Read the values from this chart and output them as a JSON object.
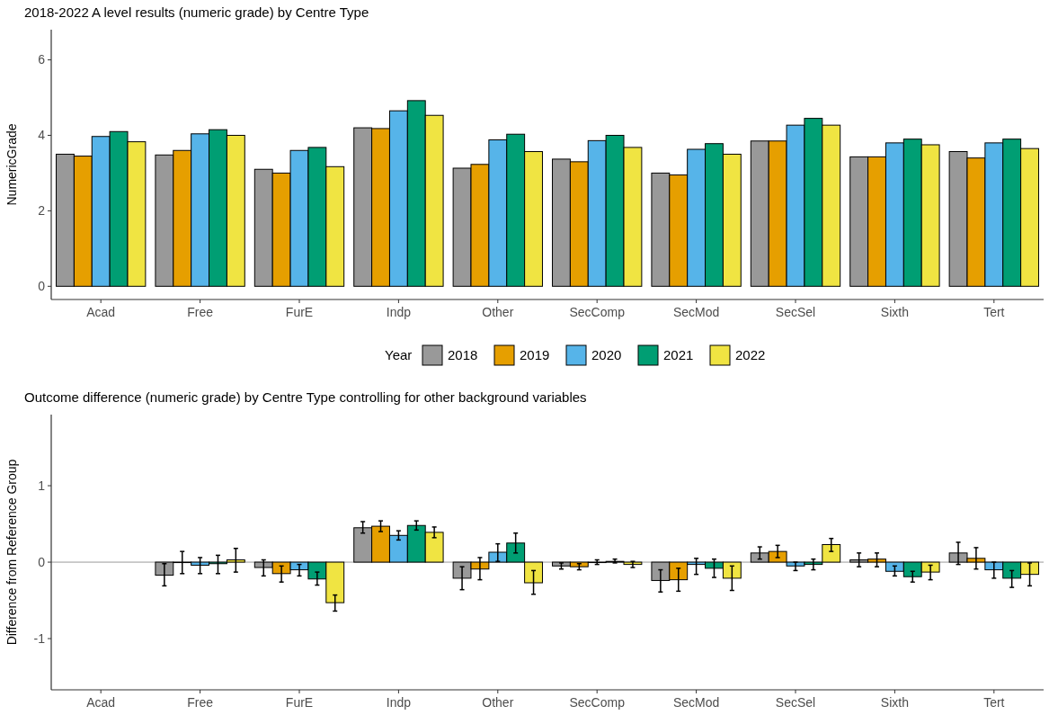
{
  "chart_data": [
    {
      "type": "bar",
      "title": "2018-2022 A level results (numeric grade) by Centre Type",
      "ylabel": "NumericGrade",
      "legend_title": "Year",
      "legend": "bottom",
      "categories": [
        "Acad",
        "Free",
        "FurE",
        "Indp",
        "Other",
        "SecComp",
        "SecMod",
        "SecSel",
        "Sixth",
        "Tert"
      ],
      "ylim": [
        -0.35,
        6.8
      ],
      "yticks": [
        0,
        2,
        4,
        6
      ],
      "series": [
        {
          "name": "2018",
          "color": "#999999",
          "values": [
            3.5,
            3.48,
            3.1,
            4.2,
            3.13,
            3.37,
            3.0,
            3.85,
            3.43,
            3.57
          ]
        },
        {
          "name": "2019",
          "color": "#e69f00",
          "values": [
            3.45,
            3.6,
            3.0,
            4.18,
            3.23,
            3.3,
            2.95,
            3.85,
            3.43,
            3.4
          ]
        },
        {
          "name": "2020",
          "color": "#56b4e9",
          "values": [
            3.97,
            4.04,
            3.6,
            4.65,
            3.88,
            3.86,
            3.63,
            4.27,
            3.8,
            3.8
          ]
        },
        {
          "name": "2021",
          "color": "#009e73",
          "values": [
            4.1,
            4.15,
            3.68,
            4.92,
            4.03,
            4.0,
            3.78,
            4.45,
            3.9,
            3.9
          ]
        },
        {
          "name": "2022",
          "color": "#f0e442",
          "values": [
            3.83,
            4.0,
            3.17,
            4.53,
            3.57,
            3.68,
            3.5,
            4.27,
            3.75,
            3.65
          ]
        }
      ]
    },
    {
      "type": "bar",
      "title": "Outcome difference (numeric grade) by Centre Type controlling for other background variables",
      "ylabel": "Difference from Reference Group",
      "categories": [
        "Acad",
        "Free",
        "FurE",
        "Indp",
        "Other",
        "SecComp",
        "SecMod",
        "SecSel",
        "Sixth",
        "Tert"
      ],
      "ylim": [
        -1.67,
        1.93
      ],
      "yticks": [
        -1,
        0,
        1
      ],
      "ref_lines": [
        {
          "axis": "y",
          "value": 0,
          "color": "#999999"
        }
      ],
      "series": [
        {
          "color": "#999999",
          "values": [
            null,
            -0.17,
            -0.07,
            0.45,
            -0.21,
            -0.05,
            -0.24,
            0.12,
            0.03,
            0.12
          ],
          "errors": [
            null,
            [
              -0.31,
              -0.02
            ],
            [
              -0.18,
              0.03
            ],
            [
              0.38,
              0.53
            ],
            [
              -0.36,
              -0.06
            ],
            [
              -0.09,
              -0.01
            ],
            [
              -0.39,
              -0.1
            ],
            [
              0.04,
              0.2
            ],
            [
              -0.06,
              0.12
            ],
            [
              -0.03,
              0.26
            ]
          ]
        },
        {
          "color": "#e69f00",
          "values": [
            null,
            0,
            -0.15,
            0.47,
            -0.09,
            -0.06,
            -0.23,
            0.14,
            0.04,
            0.05
          ],
          "errors": [
            null,
            [
              -0.15,
              0.14
            ],
            [
              -0.26,
              -0.05
            ],
            [
              0.4,
              0.54
            ],
            [
              -0.23,
              0.06
            ],
            [
              -0.1,
              -0.02
            ],
            [
              -0.38,
              -0.08
            ],
            [
              0.06,
              0.22
            ],
            [
              -0.06,
              0.12
            ],
            [
              -0.09,
              0.19
            ]
          ]
        },
        {
          "color": "#56b4e9",
          "values": [
            null,
            -0.04,
            -0.1,
            0.35,
            0.13,
            0.0,
            -0.03,
            -0.05,
            -0.12,
            -0.1
          ],
          "errors": [
            null,
            [
              -0.15,
              0.06
            ],
            [
              -0.18,
              -0.03
            ],
            [
              0.29,
              0.41
            ],
            [
              0.01,
              0.24
            ],
            [
              -0.03,
              0.03
            ],
            [
              -0.16,
              0.05
            ],
            [
              -0.11,
              0.0
            ],
            [
              -0.18,
              -0.05
            ],
            [
              -0.21,
              0.0
            ]
          ]
        },
        {
          "color": "#009e73",
          "values": [
            null,
            -0.02,
            -0.22,
            0.48,
            0.25,
            0.01,
            -0.08,
            -0.03,
            -0.19,
            -0.21
          ],
          "errors": [
            null,
            [
              -0.15,
              0.09
            ],
            [
              -0.3,
              -0.13
            ],
            [
              0.42,
              0.54
            ],
            [
              0.12,
              0.38
            ],
            [
              -0.01,
              0.04
            ],
            [
              -0.2,
              0.04
            ],
            [
              -0.1,
              0.04
            ],
            [
              -0.26,
              -0.12
            ],
            [
              -0.33,
              -0.11
            ]
          ]
        },
        {
          "color": "#f0e442",
          "values": [
            null,
            0.03,
            -0.53,
            0.39,
            -0.27,
            -0.03,
            -0.21,
            0.23,
            -0.13,
            -0.16
          ],
          "errors": [
            null,
            [
              -0.13,
              0.18
            ],
            [
              -0.64,
              -0.43
            ],
            [
              0.32,
              0.46
            ],
            [
              -0.42,
              -0.11
            ],
            [
              -0.07,
              0.01
            ],
            [
              -0.37,
              -0.05
            ],
            [
              0.14,
              0.31
            ],
            [
              -0.23,
              -0.04
            ],
            [
              -0.31,
              -0.01
            ]
          ]
        }
      ]
    }
  ]
}
